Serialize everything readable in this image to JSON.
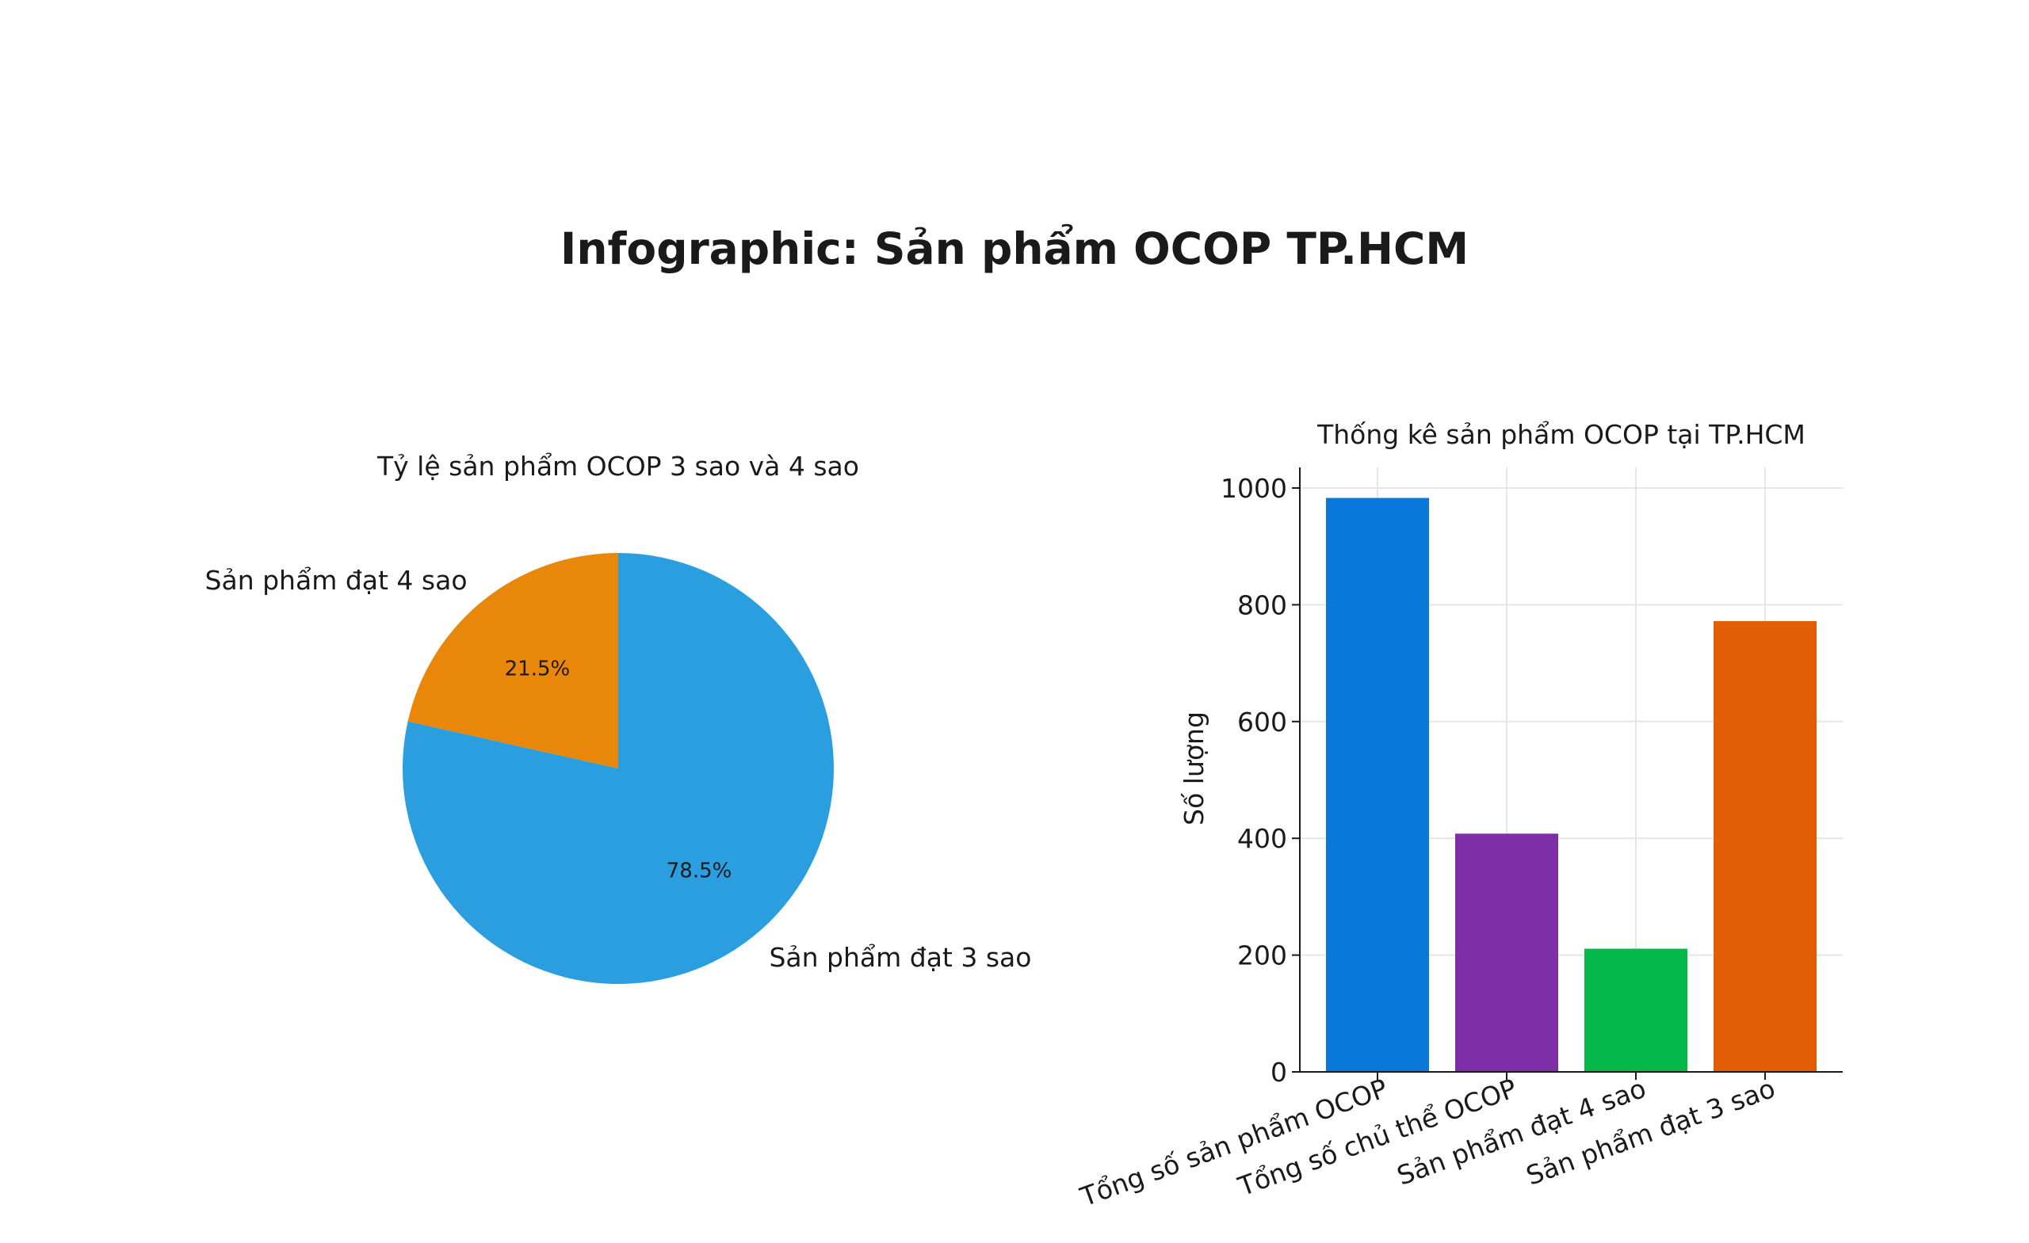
{
  "title": "Infographic: Sản phẩm OCOP TP.HCM",
  "chart_data": [
    {
      "type": "pie",
      "title": "Tỷ lệ sản phẩm OCOP 3 sao và 4 sao",
      "slices": [
        {
          "label": "Sản phẩm đạt 4 sao",
          "value": 21.5,
          "pct_label": "21.5%",
          "color": "#e8870a"
        },
        {
          "label": "Sản phẩm đạt 3 sao",
          "value": 78.5,
          "pct_label": "78.5%",
          "color": "#2b9ee0"
        }
      ]
    },
    {
      "type": "bar",
      "title": "Thống kê sản phẩm OCOP tại TP.HCM",
      "xlabel": "",
      "ylabel": "Số lượng",
      "ylim": [
        0,
        1000
      ],
      "yticks": [
        "0",
        "200",
        "400",
        "600",
        "800",
        "1000"
      ],
      "grid": true,
      "categories": [
        "Tổng số sản phẩm OCOP",
        "Tổng số chủ thể OCOP",
        "Sản phẩm đạt 4 sao",
        "Sản phẩm đạt 3 sao"
      ],
      "values": [
        983,
        408,
        211,
        772
      ],
      "colors": [
        "#0a78d8",
        "#7e2ea6",
        "#06b84a",
        "#e35c06"
      ]
    }
  ]
}
